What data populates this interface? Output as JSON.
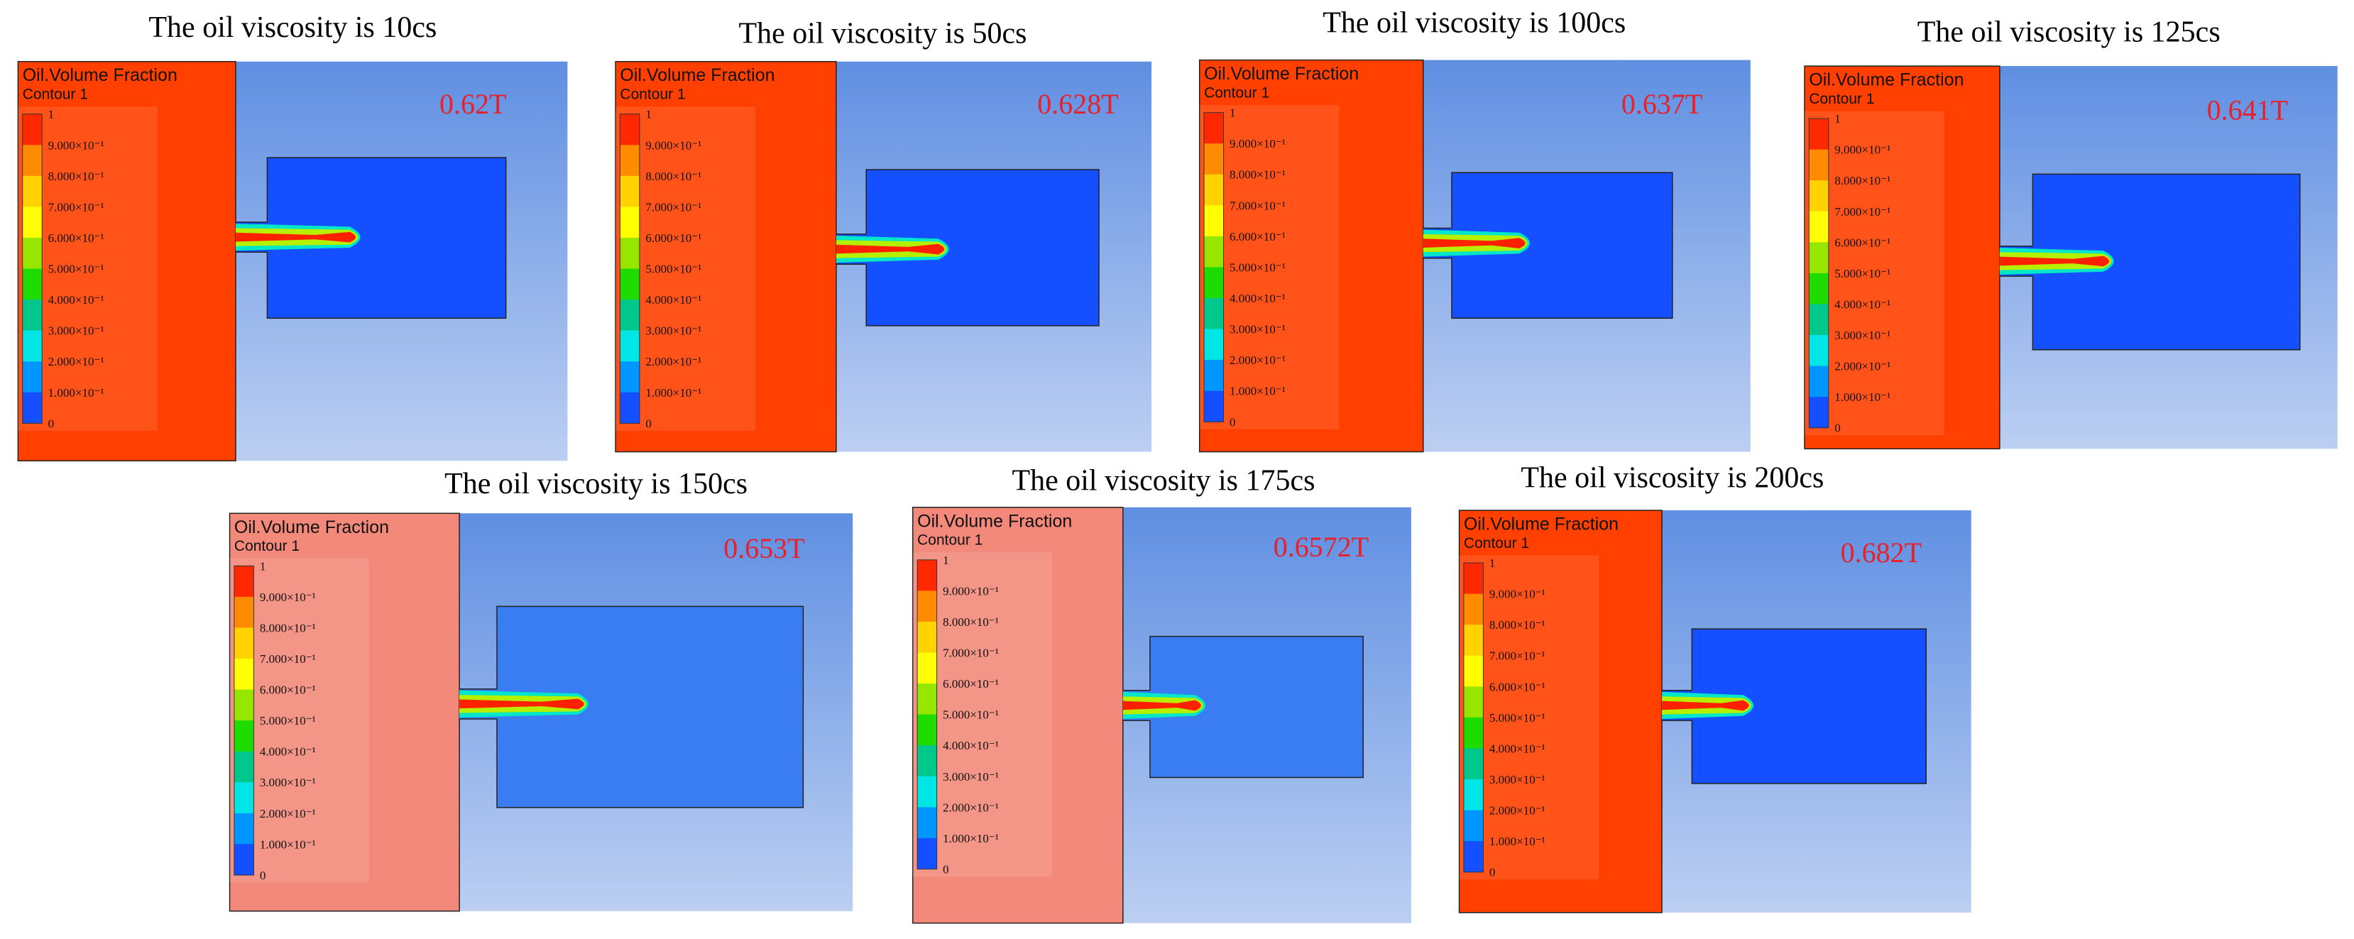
{
  "legend": {
    "title": "Oil.Volume Fraction",
    "subtitle": "Contour 1",
    "labels": [
      "1",
      "9.000×10⁻¹",
      "8.000×10⁻¹",
      "7.000×10⁻¹",
      "6.000×10⁻¹",
      "5.000×10⁻¹",
      "4.000×10⁻¹",
      "3.000×10⁻¹",
      "2.000×10⁻¹",
      "1.000×10⁻¹",
      "0"
    ]
  },
  "panels": [
    {
      "title": "The oil viscosity is 10cs",
      "time": "0.62T"
    },
    {
      "title": "The oil viscosity is 50cs",
      "time": "0.628T"
    },
    {
      "title": "The oil viscosity is 100cs",
      "time": "0.637T"
    },
    {
      "title": "The oil viscosity is 125cs",
      "time": "0.641T"
    },
    {
      "title": "The oil viscosity is 150cs",
      "time": "0.653T"
    },
    {
      "title": "The oil viscosity is 175cs",
      "time": "0.6572T"
    },
    {
      "title": "The oil viscosity is 200cs",
      "time": "0.682T"
    }
  ]
}
